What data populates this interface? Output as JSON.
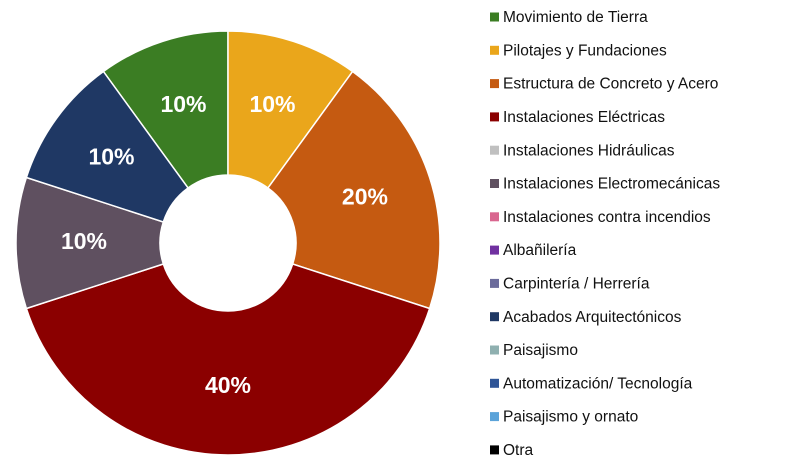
{
  "chart_data": {
    "type": "donut",
    "categories": [
      "Movimiento de Tierra",
      "Pilotajes y Fundaciones",
      "Estructura de Concreto y Acero",
      "Instalaciones Eléctricas",
      "Instalaciones Hidráulicas",
      "Instalaciones Electromecánicas",
      "Instalaciones contra incendios",
      "Albañilería",
      "Carpintería / Herrería",
      "Acabados Arquitectónicos",
      "Paisajismo",
      "Automatización/ Tecnología",
      "Paisajismo y ornato",
      "Otra"
    ],
    "values": [
      10,
      10,
      20,
      40,
      0,
      10,
      0,
      0,
      0,
      10,
      0,
      0,
      0,
      0
    ],
    "value_labels": [
      "10%",
      "10%",
      "20%",
      "40%",
      null,
      "10%",
      null,
      null,
      null,
      "10%",
      null,
      null,
      null,
      null
    ],
    "colors": [
      "#3b7d23",
      "#eaa61b",
      "#c55a11",
      "#8b0000",
      "#c0c0c0",
      "#5f5060",
      "#d9668f",
      "#7030a0",
      "#6b6b9b",
      "#1f3864",
      "#8fb0b0",
      "#2f5597",
      "#5ba3d9",
      "#000000"
    ],
    "legend": "right"
  }
}
